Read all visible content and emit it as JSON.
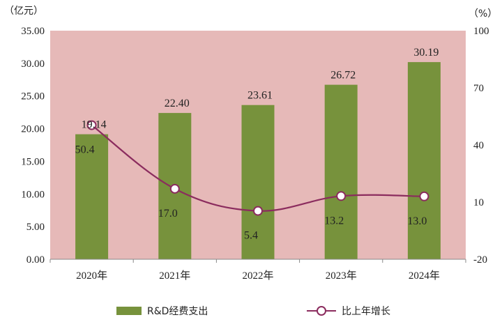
{
  "chart_data": {
    "type": "bar+line",
    "categories": [
      "2020年",
      "2021年",
      "2022年",
      "2023年",
      "2024年"
    ],
    "series": [
      {
        "name": "R&D经费支出",
        "type": "bar",
        "axis": "left",
        "values": [
          19.14,
          22.4,
          23.61,
          26.72,
          30.19
        ],
        "labels": [
          "19.14",
          "22.40",
          "23.61",
          "26.72",
          "30.19"
        ],
        "color": "#77923c"
      },
      {
        "name": "比上年增长",
        "type": "line",
        "axis": "right",
        "values": [
          50.4,
          17.0,
          5.4,
          13.2,
          13.0
        ],
        "labels": [
          "50.4",
          "17.0",
          "5.4",
          "13.2",
          "13.0"
        ],
        "color": "#8b2c5e"
      }
    ],
    "y_left": {
      "unit": "（亿元）",
      "range": [
        0,
        35
      ],
      "ticks": [
        "0.00",
        "5.00",
        "10.00",
        "15.00",
        "20.00",
        "25.00",
        "30.00",
        "35.00"
      ]
    },
    "y_right": {
      "unit": "（%）",
      "range": [
        -20,
        100
      ],
      "ticks": [
        "-20",
        "10",
        "40",
        "70",
        "100"
      ]
    },
    "plot_background": "#e6b9b8",
    "grid": false,
    "legend": "bottom"
  }
}
